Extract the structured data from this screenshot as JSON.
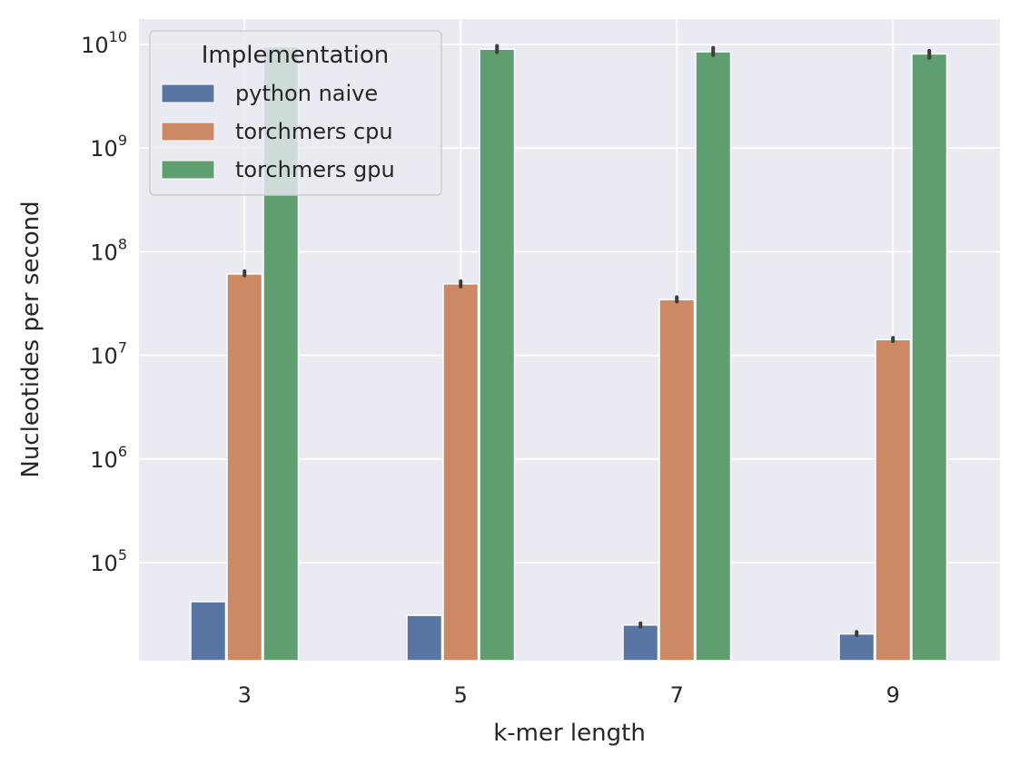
{
  "chart_data": {
    "type": "bar",
    "title": "",
    "xlabel": "k-mer length",
    "ylabel": "Nucleotides per second",
    "yscale": "log",
    "ylim": [
      12000,
      18000000000
    ],
    "grid": true,
    "categories": [
      "3",
      "5",
      "7",
      "9"
    ],
    "legend": {
      "title": "Implementation",
      "placement": "top-left"
    },
    "y_ticks": [
      {
        "base": "10",
        "exp": "5",
        "value": 100000
      },
      {
        "base": "10",
        "exp": "6",
        "value": 1000000
      },
      {
        "base": "10",
        "exp": "7",
        "value": 10000000
      },
      {
        "base": "10",
        "exp": "8",
        "value": 100000000
      },
      {
        "base": "10",
        "exp": "9",
        "value": 1000000000
      },
      {
        "base": "10",
        "exp": "10",
        "value": 10000000000
      }
    ],
    "series": [
      {
        "name": "python naive",
        "color": "#5875a4",
        "values": [
          42000,
          31000,
          25000,
          20500
        ],
        "error_low": [
          null,
          null,
          24000,
          20000
        ],
        "error_high": [
          null,
          null,
          26000,
          21500
        ]
      },
      {
        "name": "torchmers cpu",
        "color": "#cc8963",
        "values": [
          61000000,
          49000000,
          34500000,
          14200000
        ],
        "error_low": [
          59000000,
          46000000,
          33000000,
          13700000
        ],
        "error_high": [
          65000000,
          52000000,
          36500000,
          14800000
        ]
      },
      {
        "name": "torchmers gpu",
        "color": "#5f9e6e",
        "values": [
          9500000000,
          9000000000,
          8500000000,
          8100000000
        ],
        "error_low": [
          null,
          8400000000,
          7900000000,
          7400000000
        ],
        "error_high": [
          null,
          9700000000,
          9300000000,
          8700000000
        ]
      }
    ]
  }
}
